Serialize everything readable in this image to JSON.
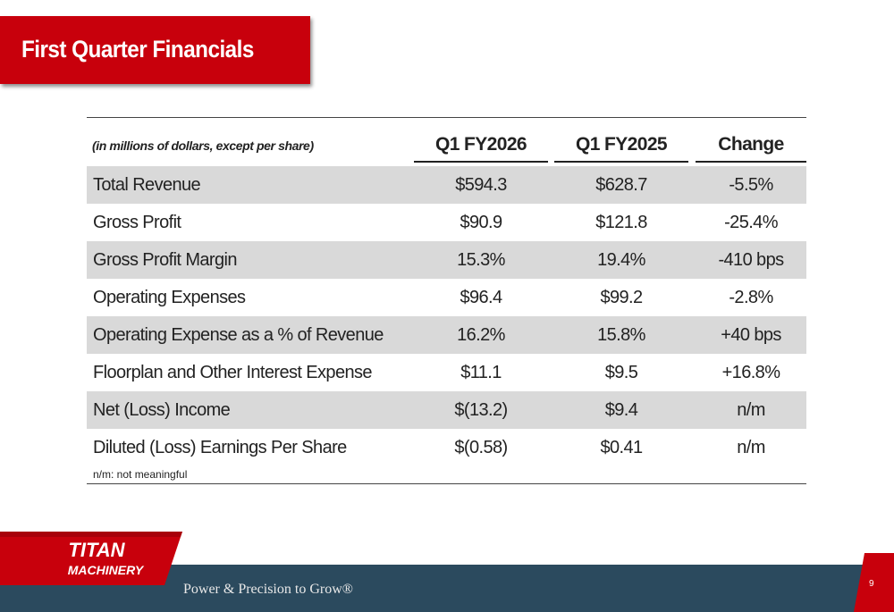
{
  "title": "First Quarter Financials",
  "table": {
    "note": "(in millions of dollars, except per share)",
    "columns": [
      "Q1 FY2026",
      "Q1 FY2025",
      "Change"
    ],
    "rows": [
      {
        "label": "Total Revenue",
        "q1_fy2026": "$594.3",
        "q1_fy2025": "$628.7",
        "change": "-5.5%"
      },
      {
        "label": "Gross Profit",
        "q1_fy2026": "$90.9",
        "q1_fy2025": "$121.8",
        "change": "-25.4%"
      },
      {
        "label": "Gross Profit Margin",
        "q1_fy2026": "15.3%",
        "q1_fy2025": "19.4%",
        "change": "-410 bps"
      },
      {
        "label": "Operating Expenses",
        "q1_fy2026": "$96.4",
        "q1_fy2025": "$99.2",
        "change": "-2.8%"
      },
      {
        "label": "Operating Expense as a % of Revenue",
        "q1_fy2026": "16.2%",
        "q1_fy2025": "15.8%",
        "change": "+40 bps"
      },
      {
        "label": "Floorplan and Other Interest Expense",
        "q1_fy2026": "$11.1",
        "q1_fy2025": "$9.5",
        "change": "+16.8%"
      },
      {
        "label": "Net (Loss) Income",
        "q1_fy2026": "$(13.2)",
        "q1_fy2025": "$9.4",
        "change": "n/m"
      },
      {
        "label": "Diluted (Loss) Earnings Per Share",
        "q1_fy2026": "$(0.58)",
        "q1_fy2025": "$0.41",
        "change": "n/m"
      }
    ],
    "footnote": "n/m: not meaningful"
  },
  "footer": {
    "logo_line1": "TITAN",
    "logo_line2": "MACHINERY",
    "tagline": "Power & Precision to Grow®",
    "page_number": "9"
  },
  "colors": {
    "brand_red": "#c8000c",
    "footer_navy": "#2b4a5e",
    "row_shade": "#d9d9d9"
  }
}
